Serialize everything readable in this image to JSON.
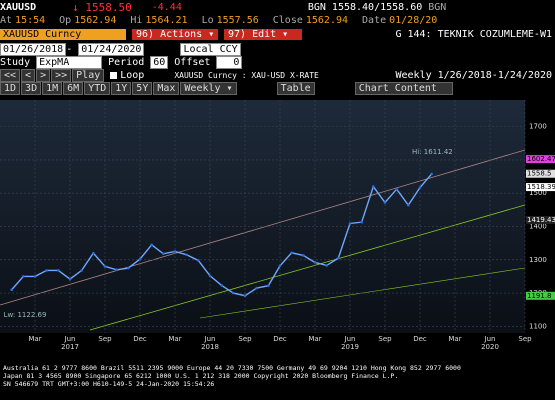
{
  "header": {
    "ticker": "XAUUSD",
    "last": "↓ 1558.50",
    "change": "-4.44",
    "quote": "BGN 1558.40/1558.60",
    "source": "BGN",
    "stats": [
      {
        "label": "At",
        "value": "15:54"
      },
      {
        "label": "Op",
        "value": "1562.94"
      },
      {
        "label": "Hi",
        "value": "1564.21"
      },
      {
        "label": "Lo",
        "value": "1557.56"
      },
      {
        "label": "Close",
        "value": "1562.94"
      },
      {
        "label": "Date",
        "value": "01/28/20"
      }
    ]
  },
  "toolbar": {
    "security": "XAUUSD Curncy",
    "actions": "96) Actions ▾",
    "edit": "97) Edit ▾",
    "page": "G 144: TEKNIK COZUMLEME-W1",
    "start": "01/26/2018",
    "end": "01/24/2020",
    "currency": "Local CCY",
    "study_label": "Study",
    "study": "ExpMA",
    "period_label": "Period",
    "period": "60",
    "offset_label": "Offset",
    "offset": "0",
    "nav": [
      "<<",
      "<",
      ">",
      ">>"
    ],
    "play": "Play",
    "loop": "Loop",
    "chart_name": "XAUUSD Curncy : XAU-USD X-RATE",
    "freq": "Weekly",
    "range": "1/26/2018-1/24/2020",
    "periods": [
      "1D",
      "3D",
      "1M",
      "6M",
      "YTD",
      "1Y",
      "5Y",
      "Max"
    ],
    "freq_select": "Weekly ▾",
    "table": "Table",
    "content": "Chart Content"
  },
  "chart_data": {
    "type": "line",
    "color": "#6fa8ff",
    "x": [
      "2017-01",
      "2017-02",
      "2017-03",
      "2017-04",
      "2017-05",
      "2017-06",
      "2017-07",
      "2017-08",
      "2017-09",
      "2017-10",
      "2017-11",
      "2017-12",
      "2018-01",
      "2018-02",
      "2018-03",
      "2018-04",
      "2018-05",
      "2018-06",
      "2018-07",
      "2018-08",
      "2018-09",
      "2018-10",
      "2018-11",
      "2018-12",
      "2019-01",
      "2019-02",
      "2019-03",
      "2019-04",
      "2019-05",
      "2019-06",
      "2019-07",
      "2019-08",
      "2019-09",
      "2019-10",
      "2019-11",
      "2019-12",
      "2020-01"
    ],
    "values": [
      1210,
      1250,
      1250,
      1268,
      1268,
      1242,
      1268,
      1320,
      1280,
      1270,
      1275,
      1302,
      1345,
      1318,
      1325,
      1315,
      1298,
      1252,
      1223,
      1200,
      1192,
      1215,
      1222,
      1282,
      1321,
      1313,
      1292,
      1283,
      1305,
      1409,
      1413,
      1520,
      1472,
      1512,
      1464,
      1517,
      1558
    ],
    "xlim": [
      "2016-12",
      "2020-09"
    ],
    "xticks": [
      {
        "value": "2017-03",
        "label": "Mar"
      },
      {
        "value": "2017-06",
        "label": "Jun"
      },
      {
        "value": "2017-09",
        "label": "Sep"
      },
      {
        "value": "2017-12",
        "label": "Dec"
      },
      {
        "value": "2018-03",
        "label": "Mar"
      },
      {
        "value": "2018-06",
        "label": "Jun"
      },
      {
        "value": "2018-09",
        "label": "Sep"
      },
      {
        "value": "2018-12",
        "label": "Dec"
      },
      {
        "value": "2019-03",
        "label": "Mar"
      },
      {
        "value": "2019-06",
        "label": "Jun"
      },
      {
        "value": "2019-09",
        "label": "Sep"
      },
      {
        "value": "2019-12",
        "label": "Dec"
      },
      {
        "value": "2020-03",
        "label": "Mar"
      },
      {
        "value": "2020-06",
        "label": "Jun"
      },
      {
        "value": "2020-09",
        "label": "Sep"
      }
    ],
    "years": [
      {
        "value": "2017-06",
        "label": "2017"
      },
      {
        "value": "2018-06",
        "label": "2018"
      },
      {
        "value": "2019-06",
        "label": "2019"
      },
      {
        "value": "2020-06",
        "label": "2020"
      }
    ],
    "ylim": [
      1080,
      1780
    ],
    "yticks": [
      1100,
      1200,
      1300,
      1400,
      1500,
      1600,
      1700
    ],
    "price_labels": [
      {
        "value": 1602.47,
        "color": "#e040e0"
      },
      {
        "value": 1558.5,
        "color": "#e0e0e0"
      },
      {
        "value": 1518.39,
        "color": "#ffffff"
      },
      {
        "value": 1419.43,
        "color": "#222222"
      },
      {
        "value": 1191.8,
        "color": "#44cc44"
      }
    ],
    "annotations": [
      {
        "value": 1611.42,
        "label": "Hi: 1611.42",
        "at": "2019-12"
      },
      {
        "value": 1122.69,
        "label": "Lw: 1122.69",
        "at": "2017-01"
      }
    ]
  },
  "footer": [
    "Australia 61 2 9777 8600 Brazil 5511 2395 9000 Europe 44 20 7330 7500 Germany 49 69 9204 1210 Hong Kong 852 2977 6000",
    "Japan 81 3 4565 8900       Singapore 65 6212 1000       U.S. 1 212 318 2000       Copyright 2020 Bloomberg Finance L.P.",
    "SN 546679 TRT  GMT+3:00 H610-149-5 24-Jan-2020 15:54:26"
  ]
}
